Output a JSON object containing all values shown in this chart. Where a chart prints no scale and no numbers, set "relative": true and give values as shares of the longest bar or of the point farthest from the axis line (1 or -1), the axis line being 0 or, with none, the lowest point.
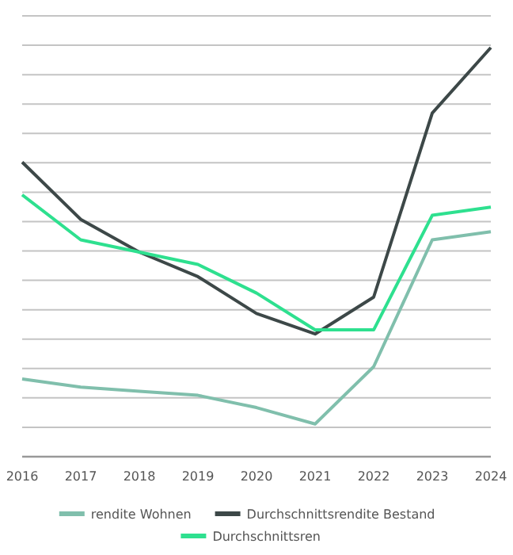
{
  "chart_data": {
    "type": "line",
    "relative": true,
    "x": [
      2016,
      2017,
      2018,
      2019,
      2020,
      2021,
      2022,
      2023,
      2024
    ],
    "xlim": [
      2016,
      2024
    ],
    "xticks": [
      2016,
      2017,
      2018,
      2019,
      2020,
      2021,
      2022,
      2023,
      2024
    ],
    "grid": "y",
    "legend": "bottom",
    "marker": "none",
    "line_style": "solid",
    "series": [
      {
        "name": "rendite Wohnen",
        "color": "#80bfac",
        "values": [
          0.19,
          0.17,
          0.16,
          0.15,
          0.12,
          0.08,
          0.22,
          0.53,
          0.55
        ]
      },
      {
        "name": "Durchschnittsrendite Bestand",
        "color": "#3d4848",
        "values": [
          0.72,
          0.58,
          0.5,
          0.44,
          0.35,
          0.3,
          0.39,
          0.84,
          1
        ]
      },
      {
        "name": "Durchschnittsren",
        "color": "#2ee08f",
        "values": [
          0.64,
          0.53,
          0.5,
          0.47,
          0.4,
          0.31,
          0.31,
          0.59,
          0.61
        ]
      }
    ]
  }
}
